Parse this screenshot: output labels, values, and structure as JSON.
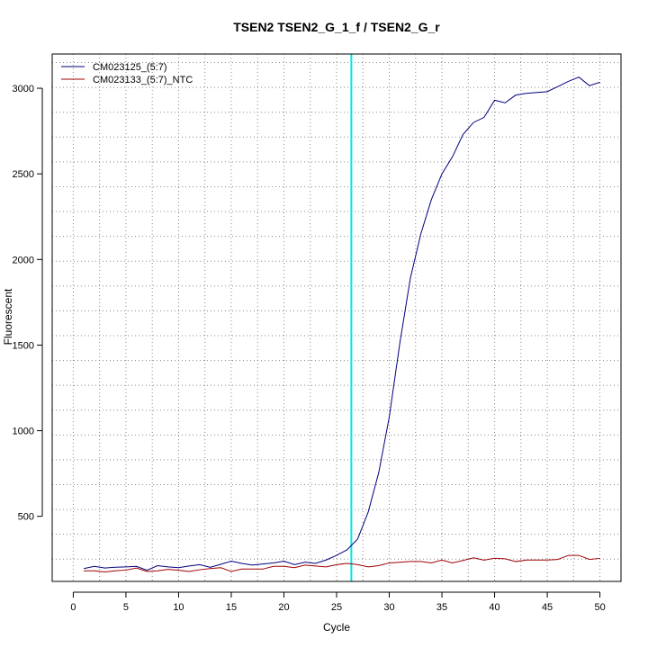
{
  "chart_data": {
    "type": "line",
    "title": "TSEN2  TSEN2_G_1_f / TSEN2_G_r",
    "xlabel": "Cycle",
    "ylabel": "Fluorescent",
    "xlim": [
      -2,
      52
    ],
    "ylim": [
      120,
      3200
    ],
    "xticks": [
      0,
      5,
      10,
      15,
      20,
      25,
      30,
      35,
      40,
      45,
      50
    ],
    "yticks": [
      500,
      1000,
      1500,
      2000,
      2500,
      3000
    ],
    "grid": true,
    "legend_position": "top-left",
    "threshold_cycle": 26.4,
    "threshold_color": "#00e5e5",
    "x": [
      1,
      2,
      3,
      4,
      5,
      6,
      7,
      8,
      9,
      10,
      11,
      12,
      13,
      14,
      15,
      16,
      17,
      18,
      19,
      20,
      21,
      22,
      23,
      24,
      25,
      26,
      27,
      28,
      29,
      30,
      31,
      32,
      33,
      34,
      35,
      36,
      37,
      38,
      39,
      40,
      41,
      42,
      43,
      44,
      45,
      46,
      47,
      48,
      49,
      50
    ],
    "series": [
      {
        "name": "CM023125_(5:7)",
        "color": "#00007f",
        "values": [
          195,
          208,
          198,
          203,
          205,
          208,
          185,
          212,
          205,
          200,
          210,
          218,
          202,
          220,
          238,
          225,
          215,
          222,
          228,
          238,
          218,
          232,
          225,
          245,
          272,
          305,
          368,
          525,
          755,
          1080,
          1510,
          1890,
          2150,
          2350,
          2500,
          2600,
          2730,
          2800,
          2830,
          2930,
          2915,
          2960,
          2970,
          2975,
          2980,
          3010,
          3040,
          3065,
          3015,
          3035
        ]
      },
      {
        "name": "CM023133_(5:7)_NTC",
        "color": "#a00000",
        "values": [
          182,
          182,
          175,
          182,
          186,
          198,
          178,
          182,
          190,
          185,
          178,
          188,
          195,
          200,
          178,
          192,
          192,
          192,
          208,
          208,
          200,
          215,
          210,
          205,
          218,
          225,
          218,
          205,
          212,
          228,
          232,
          236,
          236,
          228,
          245,
          228,
          242,
          258,
          244,
          255,
          252,
          236,
          245,
          245,
          245,
          248,
          272,
          272,
          248,
          255
        ]
      }
    ]
  }
}
